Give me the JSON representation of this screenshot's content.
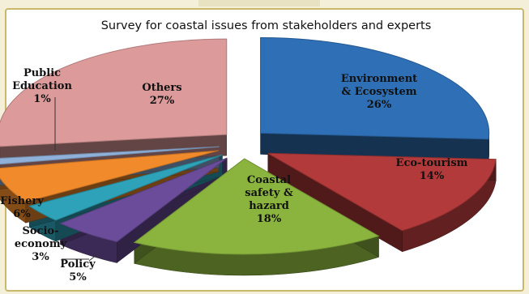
{
  "chart_data": {
    "type": "pie",
    "title": "Survey for coastal issues from stakeholders and experts",
    "slices": [
      {
        "label": "Environment & Ecosystem",
        "value": 26,
        "value_label": "26%",
        "color": "#2e6fb5"
      },
      {
        "label": "Eco-tourism",
        "value": 14,
        "value_label": "14%",
        "color": "#b33a3a"
      },
      {
        "label": "Coastal safety & hazard",
        "value": 18,
        "value_label": "18%",
        "color": "#8bb43e"
      },
      {
        "label": "Policy",
        "value": 5,
        "value_label": "5%",
        "color": "#6b4c9a"
      },
      {
        "label": "Socio-economy",
        "value": 3,
        "value_label": "3%",
        "color": "#2ea2b8"
      },
      {
        "label": "Fishery",
        "value": 6,
        "value_label": "6%",
        "color": "#f08a2a"
      },
      {
        "label": "Public Education",
        "value": 1,
        "value_label": "1%",
        "color": "#8fb0d8"
      },
      {
        "label": "Others",
        "value": 27,
        "value_label": "27%",
        "color": "#dc9a9a"
      }
    ],
    "exploded": true,
    "three_d": true
  },
  "labels": {
    "environment": [
      "Environment",
      "& Ecosystem",
      "26%"
    ],
    "ecotourism": [
      "Eco-tourism",
      "14%"
    ],
    "coastal": [
      "Coastal",
      "safety &",
      "hazard",
      "18%"
    ],
    "policy": [
      "Policy",
      "5%"
    ],
    "socio": [
      "Socio-",
      "economy",
      "3%"
    ],
    "fishery": [
      "Fishery",
      "6%"
    ],
    "public": [
      "Public",
      "Education",
      "1%"
    ],
    "others": [
      "Others",
      "27%"
    ]
  }
}
